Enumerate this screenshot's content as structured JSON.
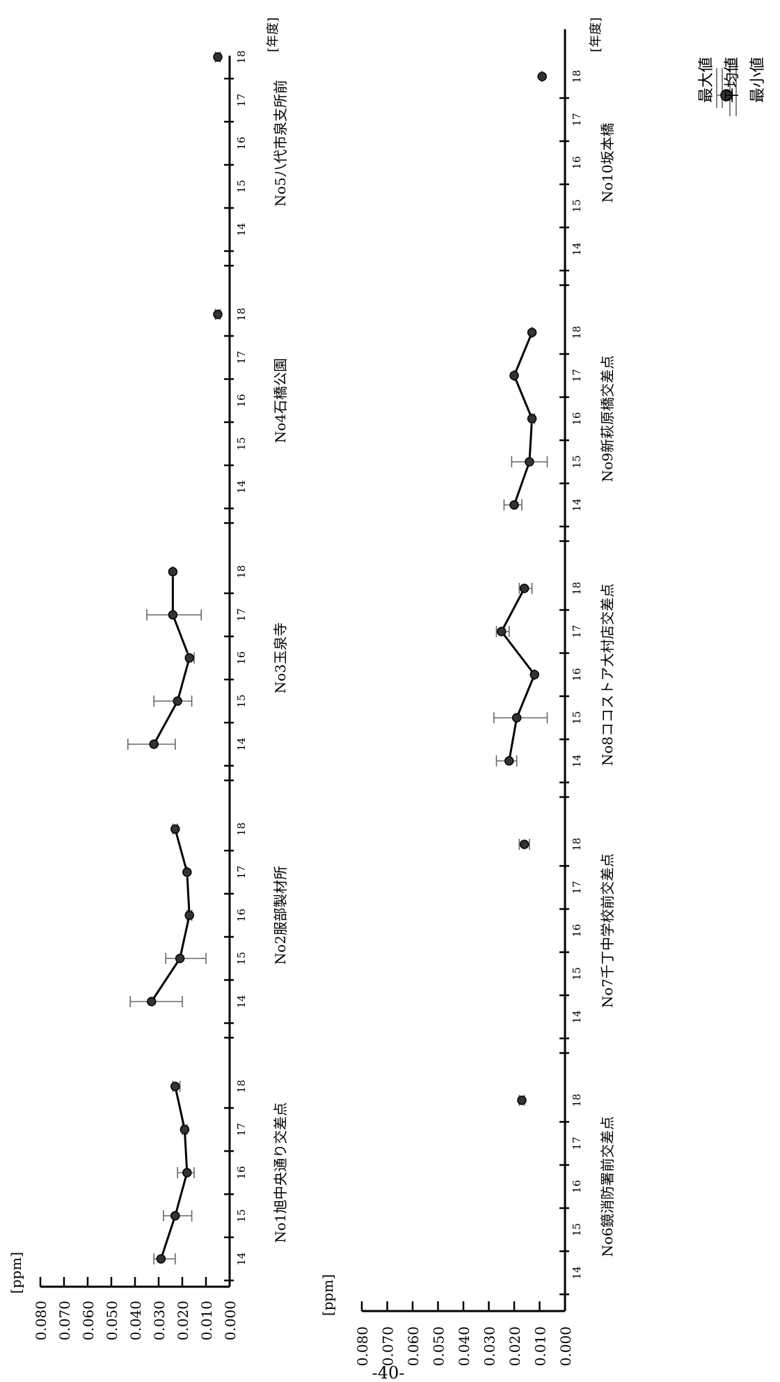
{
  "page_number": "-40-",
  "legend": {
    "max_label": "最大値",
    "mean_label": "平均値",
    "min_label": "最小値"
  },
  "chart_data": [
    {
      "type": "line",
      "ylabel": "[ppm]",
      "xlabel": "[年度]",
      "ylim": [
        0,
        0.08
      ],
      "ytick_labels": [
        "0.000",
        "0.010",
        "0.020",
        "0.030",
        "0.040",
        "0.050",
        "0.060",
        "0.070",
        "0.080"
      ],
      "categories": [
        "14",
        "15",
        "16",
        "17",
        "18"
      ],
      "panels": [
        {
          "name": "No1旭中央通り交差点",
          "mean": [
            0.029,
            0.023,
            0.018,
            0.019,
            0.023
          ],
          "max": [
            0.032,
            0.028,
            0.022,
            0.02,
            0.024
          ],
          "min": [
            0.023,
            0.016,
            0.015,
            0.018,
            0.021
          ]
        },
        {
          "name": "No2服部製材所",
          "mean": [
            0.033,
            0.021,
            0.017,
            0.018,
            0.023
          ],
          "max": [
            0.042,
            0.027,
            0.018,
            0.018,
            0.024
          ],
          "min": [
            0.02,
            0.01,
            0.016,
            0.018,
            0.022
          ]
        },
        {
          "name": "No3玉泉寺",
          "mean": [
            0.032,
            0.022,
            0.017,
            0.024,
            0.024
          ],
          "max": [
            0.043,
            0.032,
            0.018,
            0.035,
            0.024
          ],
          "min": [
            0.023,
            0.016,
            0.015,
            0.012,
            0.024
          ]
        },
        {
          "name": "No4石橋公園",
          "mean": [
            null,
            null,
            null,
            null,
            0.005
          ],
          "max": [
            null,
            null,
            null,
            null,
            0.006
          ],
          "min": [
            null,
            null,
            null,
            null,
            0.004
          ]
        },
        {
          "name": "No5八代市泉支所前",
          "mean": [
            null,
            null,
            null,
            null,
            0.005
          ],
          "max": [
            null,
            null,
            null,
            null,
            0.006
          ],
          "min": [
            null,
            null,
            null,
            null,
            0.004
          ]
        }
      ]
    },
    {
      "type": "line",
      "ylabel": "[ppm]",
      "xlabel": "[年度]",
      "ylim": [
        0,
        0.08
      ],
      "ytick_labels": [
        "0.000",
        "0.010",
        "0.020",
        "0.030",
        "0.040",
        "0.050",
        "0.060",
        "0.070",
        "0.080"
      ],
      "categories": [
        "14",
        "15",
        "16",
        "17",
        "18"
      ],
      "panels": [
        {
          "name": "No6鏡消防署前交差点",
          "mean": [
            null,
            null,
            null,
            null,
            0.017
          ],
          "max": [
            null,
            null,
            null,
            null,
            0.018
          ],
          "min": [
            null,
            null,
            null,
            null,
            0.016
          ]
        },
        {
          "name": "No7千丁中学校前交差点",
          "mean": [
            null,
            null,
            null,
            null,
            0.016
          ],
          "max": [
            null,
            null,
            null,
            null,
            0.018
          ],
          "min": [
            null,
            null,
            null,
            null,
            0.014
          ]
        },
        {
          "name": "No8ココストア大村店交差点",
          "mean": [
            0.022,
            0.019,
            0.012,
            0.025,
            0.016
          ],
          "max": [
            0.027,
            0.028,
            0.012,
            0.027,
            0.018
          ],
          "min": [
            0.019,
            0.007,
            0.012,
            0.022,
            0.013
          ]
        },
        {
          "name": "No9新萩原橋交差点",
          "mean": [
            0.02,
            0.014,
            0.013,
            0.02,
            0.013
          ],
          "max": [
            0.024,
            0.021,
            0.013,
            0.02,
            0.013
          ],
          "min": [
            0.017,
            0.007,
            0.012,
            0.02,
            0.013
          ]
        },
        {
          "name": "No10坂本橋",
          "mean": [
            null,
            null,
            null,
            null,
            0.009
          ],
          "max": [
            null,
            null,
            null,
            null,
            0.009
          ],
          "min": [
            null,
            null,
            null,
            null,
            0.009
          ]
        }
      ]
    }
  ]
}
